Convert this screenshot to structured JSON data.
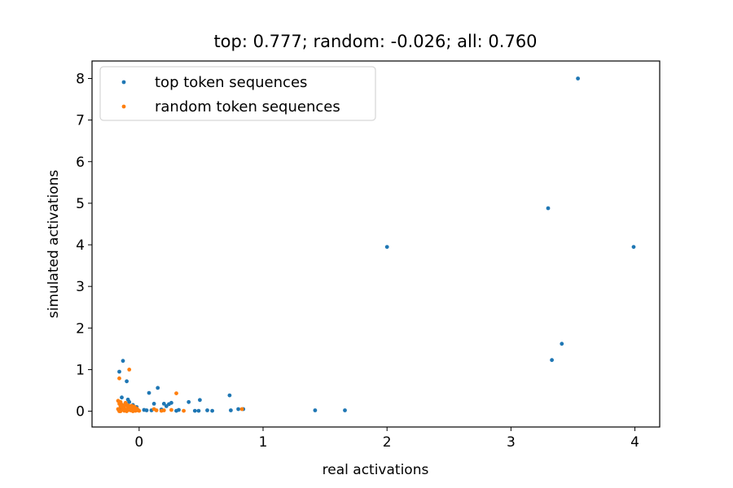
{
  "chart_data": {
    "type": "scatter",
    "title": "top:  0.777; random: -0.026; all:  0.760",
    "xlabel": "real activations",
    "ylabel": "simulated activations",
    "xlim": [
      -0.38,
      4.2
    ],
    "ylim": [
      -0.38,
      8.42
    ],
    "x_ticks": [
      0,
      1,
      2,
      3,
      4
    ],
    "x_tick_labels": [
      "0",
      "1",
      "2",
      "3",
      "4"
    ],
    "y_ticks": [
      0,
      1,
      2,
      3,
      4,
      5,
      6,
      7,
      8
    ],
    "y_tick_labels": [
      "0",
      "1",
      "2",
      "3",
      "4",
      "5",
      "6",
      "7",
      "8"
    ],
    "grid": false,
    "legend_position": "upper-left",
    "series": [
      {
        "name": "top token sequences",
        "color": "#1f77b4",
        "points": [
          [
            3.54,
            8.0
          ],
          [
            3.3,
            4.88
          ],
          [
            2.0,
            3.95
          ],
          [
            3.99,
            3.95
          ],
          [
            3.41,
            1.62
          ],
          [
            3.33,
            1.23
          ],
          [
            1.66,
            0.02
          ],
          [
            1.42,
            0.02
          ],
          [
            0.84,
            0.05
          ],
          [
            0.8,
            0.05
          ],
          [
            0.74,
            0.02
          ],
          [
            0.73,
            0.38
          ],
          [
            0.59,
            0.01
          ],
          [
            0.55,
            0.02
          ],
          [
            0.49,
            0.27
          ],
          [
            0.48,
            0.01
          ],
          [
            0.45,
            0.01
          ],
          [
            0.4,
            0.22
          ],
          [
            0.32,
            0.03
          ],
          [
            0.3,
            0.01
          ],
          [
            0.26,
            0.2
          ],
          [
            0.24,
            0.17
          ],
          [
            0.22,
            0.12
          ],
          [
            0.2,
            0.18
          ],
          [
            0.18,
            0.04
          ],
          [
            0.15,
            0.56
          ],
          [
            0.12,
            0.18
          ],
          [
            0.1,
            0.02
          ],
          [
            0.08,
            0.44
          ],
          [
            0.06,
            0.02
          ],
          [
            0.04,
            0.03
          ],
          [
            -0.13,
            1.21
          ],
          [
            -0.16,
            0.95
          ],
          [
            -0.1,
            0.72
          ],
          [
            -0.14,
            0.33
          ],
          [
            -0.09,
            0.28
          ],
          [
            -0.08,
            0.22
          ],
          [
            -0.05,
            0.15
          ],
          [
            -0.02,
            0.1
          ],
          [
            -0.11,
            0.18
          ],
          [
            -0.15,
            0.08
          ],
          [
            -0.12,
            0.02
          ],
          [
            -0.06,
            0.05
          ],
          [
            -0.04,
            0.02
          ],
          [
            -0.01,
            0.03
          ]
        ]
      },
      {
        "name": "random token sequences",
        "color": "#ff7f0e",
        "points": [
          [
            -0.08,
            1.0
          ],
          [
            -0.16,
            0.79
          ],
          [
            0.3,
            0.43
          ],
          [
            0.83,
            0.05
          ],
          [
            0.36,
            0.01
          ],
          [
            0.26,
            0.03
          ],
          [
            0.2,
            0.02
          ],
          [
            0.18,
            0.01
          ],
          [
            0.14,
            0.02
          ],
          [
            0.12,
            0.05
          ],
          [
            -0.17,
            0.25
          ],
          [
            -0.16,
            0.18
          ],
          [
            -0.15,
            0.12
          ],
          [
            -0.14,
            0.08
          ],
          [
            -0.13,
            0.04
          ],
          [
            -0.12,
            0.01
          ],
          [
            -0.11,
            0.2
          ],
          [
            -0.1,
            0.15
          ],
          [
            -0.09,
            0.1
          ],
          [
            -0.08,
            0.06
          ],
          [
            -0.07,
            0.02
          ],
          [
            -0.06,
            0.13
          ],
          [
            -0.05,
            0.09
          ],
          [
            -0.04,
            0.05
          ],
          [
            -0.03,
            0.01
          ],
          [
            -0.02,
            0.07
          ],
          [
            -0.01,
            0.03
          ],
          [
            0.0,
            0.01
          ],
          [
            -0.17,
            0.05
          ],
          [
            -0.16,
            0.0
          ],
          [
            -0.15,
            0.22
          ],
          [
            -0.14,
            0.16
          ],
          [
            -0.13,
            0.11
          ],
          [
            -0.12,
            0.07
          ],
          [
            -0.11,
            0.03
          ],
          [
            -0.1,
            0.0
          ],
          [
            -0.09,
            0.14
          ],
          [
            -0.08,
            0.12
          ],
          [
            -0.07,
            0.08
          ],
          [
            -0.06,
            0.04
          ],
          [
            -0.05,
            0.0
          ],
          [
            -0.04,
            0.11
          ],
          [
            -0.03,
            0.06
          ],
          [
            -0.02,
            0.02
          ],
          [
            -0.15,
            0.0
          ],
          [
            -0.12,
            0.13
          ],
          [
            -0.09,
            0.03
          ],
          [
            -0.06,
            0.09
          ]
        ]
      }
    ]
  }
}
